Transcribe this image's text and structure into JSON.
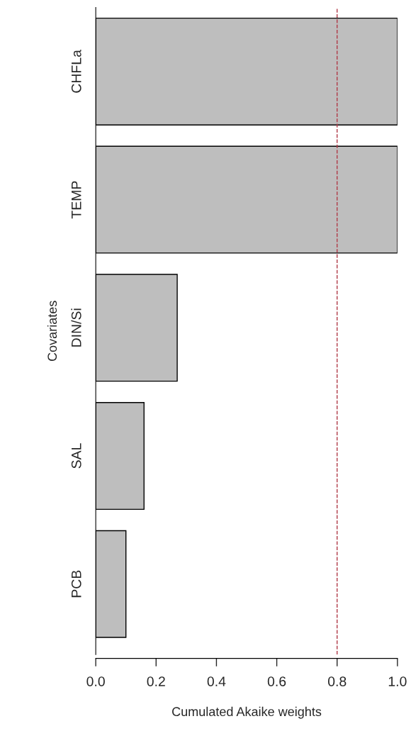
{
  "chart_data": {
    "type": "bar",
    "orientation": "horizontal",
    "xlabel": "Cumulated Akaike weights",
    "ylabel": "Covariates",
    "categories": [
      "CHFLa",
      "TEMP",
      "DIN/Si",
      "SAL",
      "PCB"
    ],
    "values": [
      1.0,
      1.0,
      0.27,
      0.16,
      0.1
    ],
    "color": "#bebebe",
    "xlim": [
      0,
      1
    ],
    "xticks": [
      {
        "value": 0,
        "label": "0.0"
      },
      {
        "value": 0.2,
        "label": "0.2"
      },
      {
        "value": 0.4,
        "label": "0.4"
      },
      {
        "value": 0.6,
        "label": "0.6"
      },
      {
        "value": 0.8,
        "label": "0.8"
      },
      {
        "value": 1,
        "label": "1.0"
      }
    ],
    "ref_lines": [
      {
        "axis": "x",
        "value": 0.8,
        "color": "#b03a48",
        "line_style": "dashed"
      }
    ],
    "grid": false,
    "legend": false
  }
}
